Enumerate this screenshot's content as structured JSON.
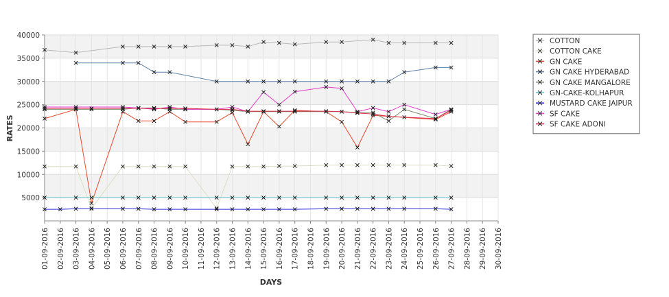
{
  "chart_data": {
    "type": "line",
    "xlabel": "DAYS",
    "ylabel": "RATES",
    "ylim": [
      0,
      40000
    ],
    "yticks": [
      5000,
      10000,
      15000,
      20000,
      25000,
      30000,
      35000,
      40000
    ],
    "ytick_labels": [
      "5000",
      "10000",
      "15000",
      "20000",
      "25000",
      "30000",
      "35000",
      "40000"
    ],
    "x": [
      "01-09-2016",
      "02-09-2016",
      "03-09-2016",
      "04-09-2016",
      "05-09-2016",
      "06-09-2016",
      "07-09-2016",
      "08-09-2016",
      "09-09-2016",
      "10-09-2016",
      "11-09-2016",
      "12-09-2016",
      "13-09-2016",
      "14-09-2016",
      "15-09-2016",
      "16-09-2016",
      "17-09-2016",
      "18-09-2016",
      "19-09-2016",
      "20-09-2016",
      "21-09-2016",
      "22-09-2016",
      "23-09-2016",
      "24-09-2016",
      "25-09-2016",
      "26-09-2016",
      "27-09-2016",
      "28-09-2016",
      "29-09-2016",
      "30-09-2016"
    ],
    "grid": true,
    "banded_background": true,
    "legend_position": "right",
    "series": [
      {
        "name": "COTTON",
        "color": "#b8b8b8",
        "values": [
          36800,
          null,
          36200,
          null,
          null,
          37500,
          37500,
          37500,
          37500,
          37500,
          null,
          37800,
          37800,
          37500,
          38500,
          38300,
          38000,
          null,
          38500,
          38500,
          null,
          39000,
          38300,
          38300,
          null,
          38300,
          38300,
          null,
          null,
          null
        ]
      },
      {
        "name": "COTTON CAKE",
        "color": "#ddddc4",
        "values": [
          11700,
          null,
          11700,
          2700,
          null,
          11700,
          11700,
          11700,
          11700,
          11700,
          null,
          2700,
          11700,
          11700,
          11700,
          11800,
          11800,
          null,
          12000,
          12000,
          12000,
          12000,
          12000,
          12000,
          null,
          12000,
          11800,
          null,
          null,
          null
        ]
      },
      {
        "name": "GN CAKE",
        "color": "#e34a2c",
        "values": [
          22000,
          null,
          24000,
          3800,
          null,
          23500,
          21500,
          21500,
          23500,
          21300,
          null,
          21300,
          23300,
          16500,
          23500,
          20300,
          23800,
          null,
          23500,
          21300,
          15800,
          22700,
          22500,
          null,
          null,
          21800,
          23500,
          null,
          null,
          null
        ]
      },
      {
        "name": "GN CAKE HYDERABAD",
        "color": "#5c7fa6",
        "values": [
          null,
          null,
          34000,
          null,
          null,
          34000,
          34000,
          32000,
          32000,
          null,
          null,
          30000,
          null,
          30000,
          30000,
          30000,
          30000,
          null,
          30000,
          30000,
          30000,
          30000,
          30000,
          32000,
          null,
          33000,
          33000,
          null,
          null,
          null
        ]
      },
      {
        "name": "GN CAKE MANGALORE",
        "color": "#7a8a6a",
        "values": [
          24000,
          null,
          24000,
          24000,
          null,
          24000,
          24300,
          24300,
          24000,
          24000,
          null,
          24000,
          23800,
          23500,
          23500,
          23500,
          23500,
          null,
          23500,
          23500,
          23300,
          23300,
          21500,
          24000,
          null,
          22000,
          24000,
          null,
          null,
          null
        ]
      },
      {
        "name": "GN-CAKE-KOLHAPUR",
        "color": "#5bc0cc",
        "values": [
          5000,
          null,
          5000,
          5000,
          null,
          5000,
          5000,
          5000,
          5000,
          5000,
          null,
          5000,
          5000,
          5000,
          5000,
          5000,
          5000,
          null,
          5000,
          5000,
          5000,
          5000,
          5000,
          5000,
          null,
          5000,
          5000,
          null,
          null,
          null
        ]
      },
      {
        "name": "MUSTARD CAKE JAIPUR",
        "color": "#2a2ad8",
        "values": [
          2500,
          2500,
          2600,
          2600,
          null,
          2600,
          2600,
          2500,
          2500,
          2500,
          null,
          2500,
          2500,
          2500,
          2500,
          2500,
          2500,
          null,
          2600,
          2600,
          2600,
          2600,
          2600,
          2600,
          null,
          2600,
          2500,
          null,
          null,
          null
        ]
      },
      {
        "name": "SF CAKE",
        "color": "#e23ac8",
        "values": [
          24500,
          null,
          24500,
          null,
          null,
          24500,
          24300,
          24000,
          24500,
          24000,
          null,
          24000,
          24500,
          23500,
          27700,
          25000,
          27800,
          null,
          28800,
          28500,
          23500,
          24300,
          23500,
          25000,
          null,
          22900,
          24000,
          null,
          null,
          null
        ]
      },
      {
        "name": "SF CAKE ADONI",
        "color": "#e02b4a",
        "values": [
          24200,
          null,
          24200,
          24200,
          null,
          24200,
          24200,
          24200,
          24200,
          24200,
          null,
          24000,
          24000,
          23600,
          23600,
          23600,
          23600,
          null,
          23600,
          23500,
          23200,
          23000,
          22500,
          22300,
          null,
          22000,
          23800,
          null,
          null,
          null
        ]
      }
    ]
  }
}
